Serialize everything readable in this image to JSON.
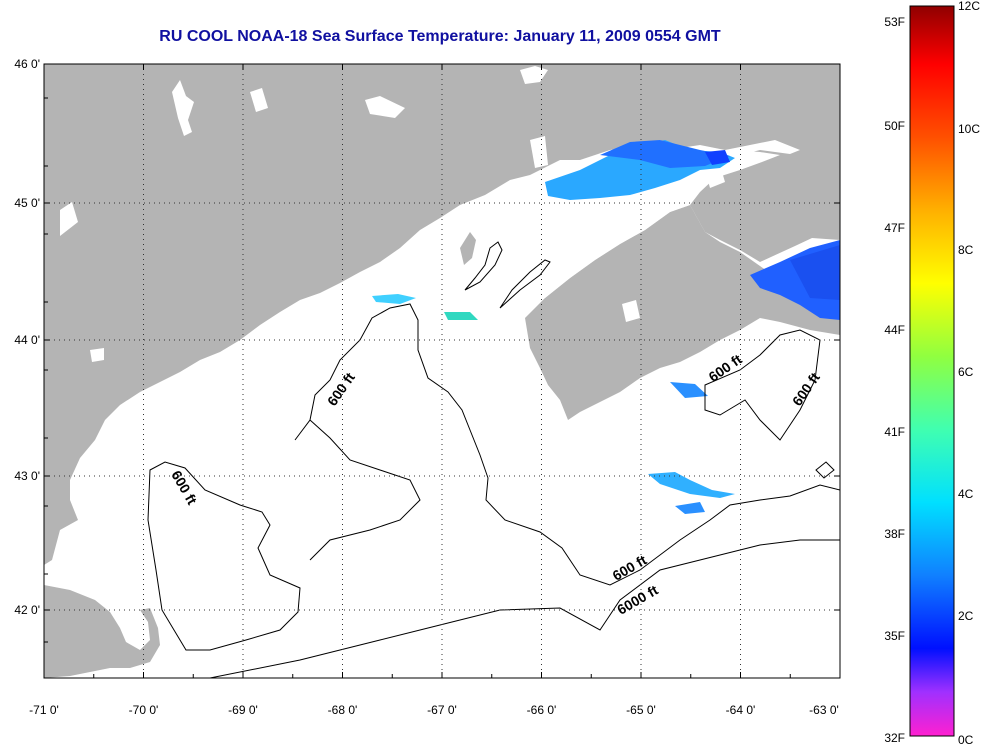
{
  "title": "RU COOL  NOAA-18  Sea Surface Temperature:  January 11, 2009 0554 GMT",
  "map": {
    "x_ticks": [
      "-71 0'",
      "-70 0'",
      "-69 0'",
      "-68 0'",
      "-67 0'",
      "-66 0'",
      "-65 0'",
      "-64 0'",
      "-63 0'"
    ],
    "y_ticks": [
      "46 0'",
      "45 0'",
      "44 0'",
      "43 0'",
      "42 0'"
    ],
    "contour_labels": [
      "600 ft",
      "600 ft",
      "600 ft",
      "600 ft",
      "600 ft",
      "6000 ft"
    ],
    "colors": {
      "land": "#b4b4b4",
      "water": "#ffffff",
      "sst_patch": "#2aa8ff"
    }
  },
  "colorbar": {
    "fahrenheit_labels": [
      "53F",
      "50F",
      "47F",
      "44F",
      "41F",
      "38F",
      "35F",
      "32F"
    ],
    "celsius_labels": [
      "12C",
      "10C",
      "8C",
      "6C",
      "4C",
      "2C",
      "0C"
    ]
  }
}
